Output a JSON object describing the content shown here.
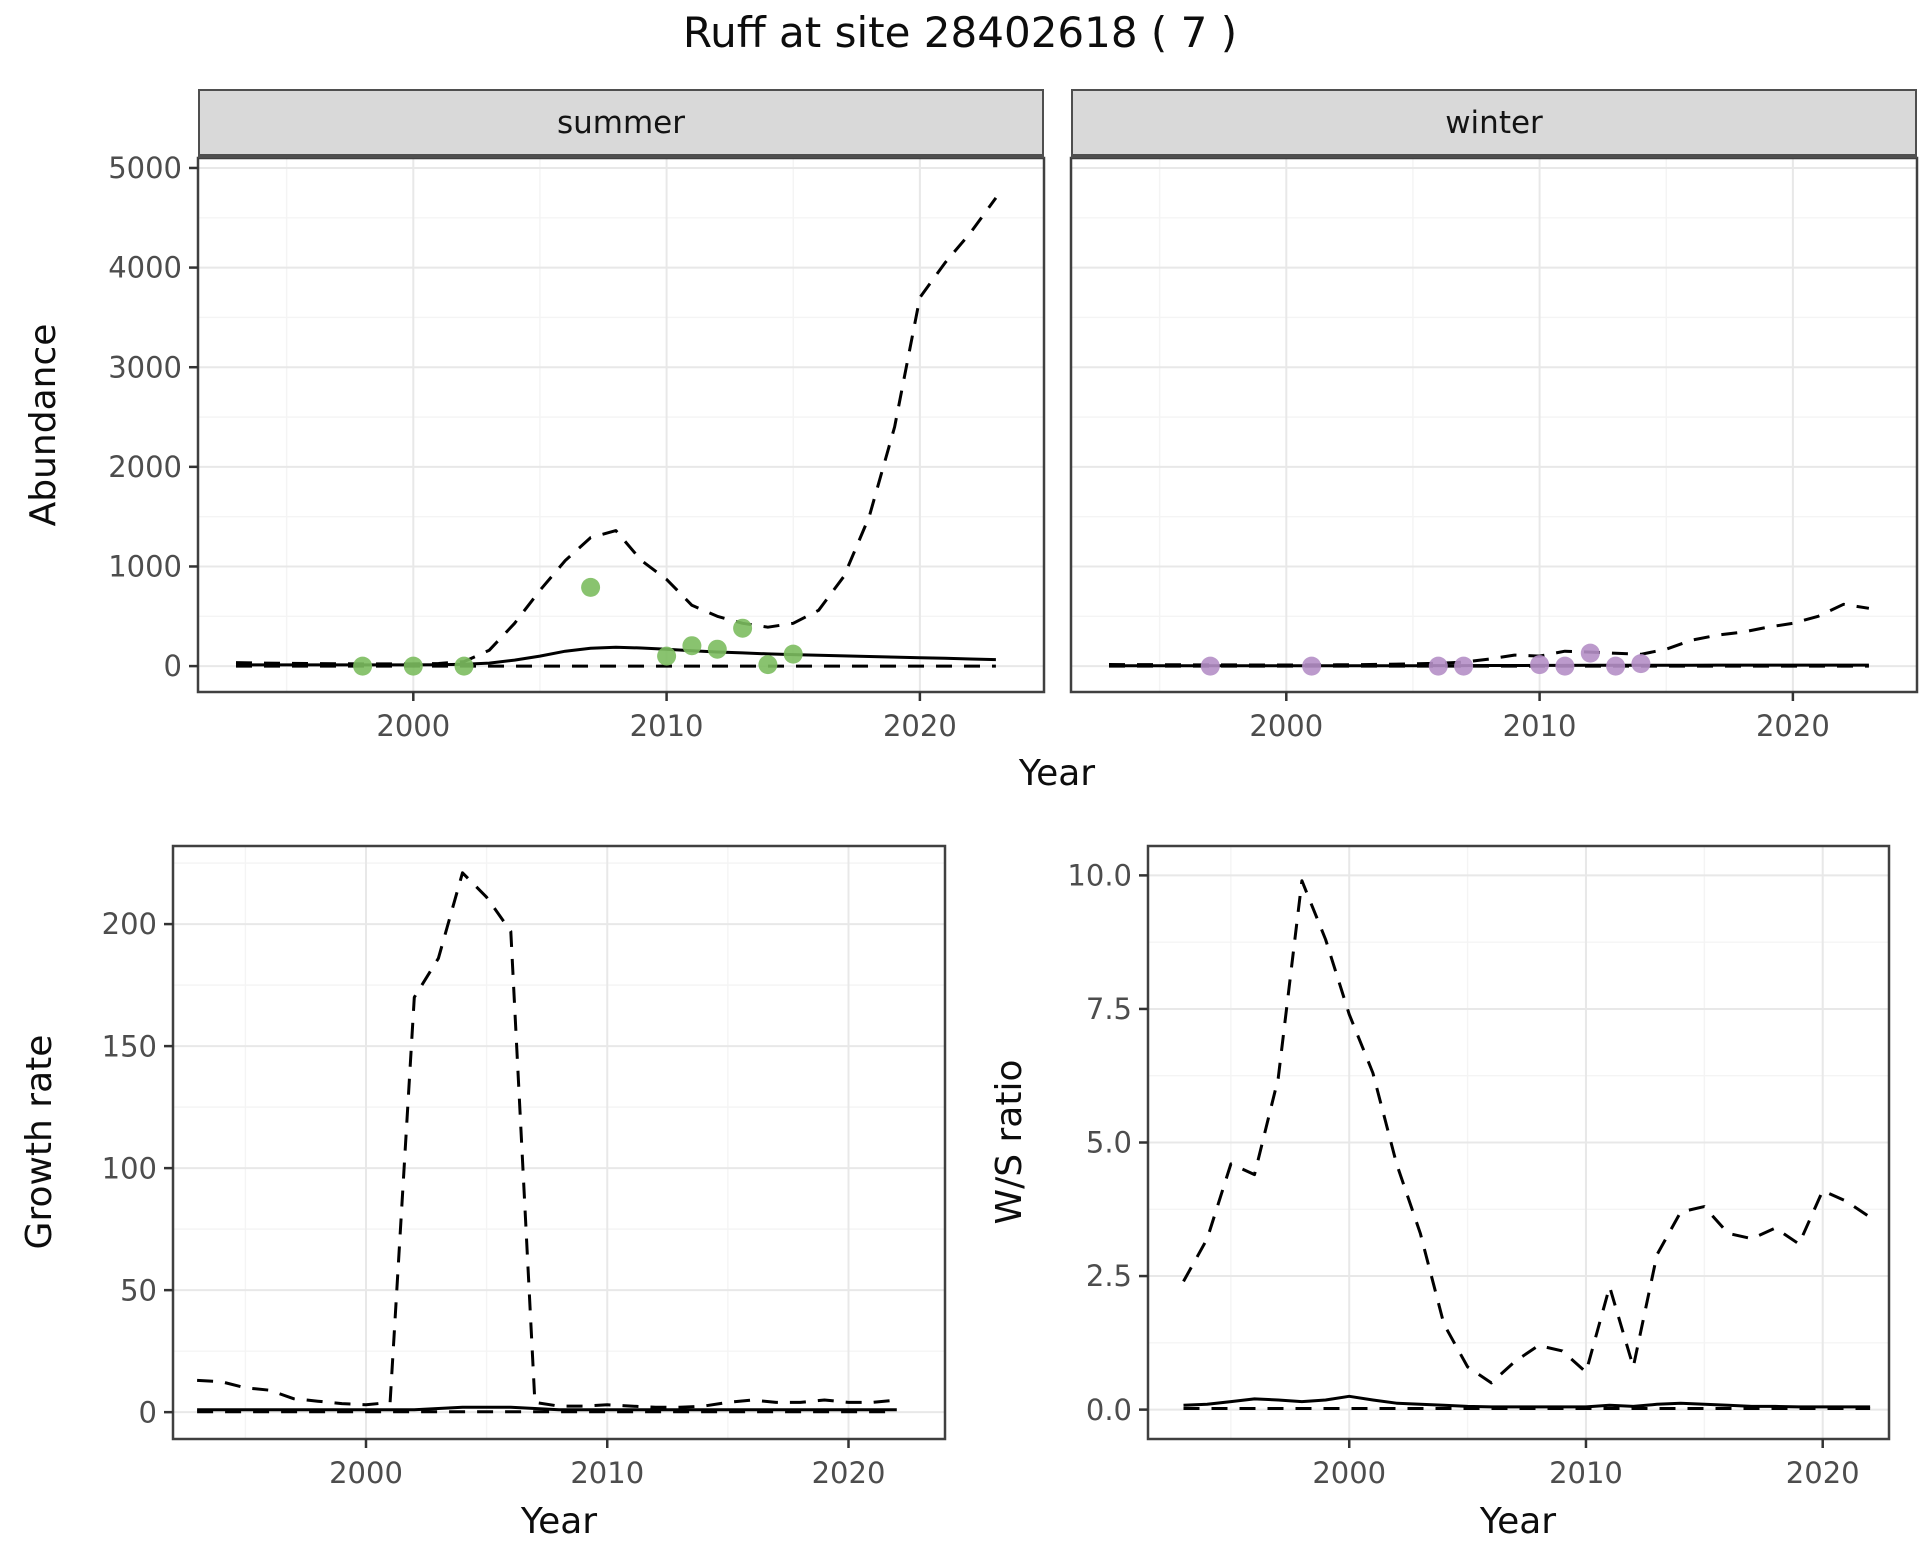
{
  "title": "Ruff at site 28402618 ( 7 )",
  "colors": {
    "summer_points": "#7cbd5f",
    "winter_points": "#b58fc6",
    "line": "#000000",
    "strip_bg": "#d9d9d9",
    "grid_major": "#e8e8e8",
    "grid_minor": "#f4f4f4",
    "panel_border": "#404040",
    "tick_text": "#4d4d4d"
  },
  "chart_data": [
    {
      "id": "abundance-summer",
      "type": "line",
      "facet": "summer",
      "xlabel": "Year",
      "ylabel": "Abundance",
      "xlim": [
        1991.5,
        2024.9
      ],
      "ylim": [
        -260,
        5100
      ],
      "xticks": [
        2000,
        2010,
        2020
      ],
      "xtick_labels": [
        "2000",
        "2010",
        "2020"
      ],
      "yticks": [
        0,
        1000,
        2000,
        3000,
        4000,
        5000
      ],
      "ytick_labels": [
        "0",
        "1000",
        "2000",
        "3000",
        "4000",
        "5000"
      ],
      "x": [
        1993,
        1994,
        1995,
        1996,
        1997,
        1998,
        1999,
        2000,
        2001,
        2002,
        2003,
        2004,
        2005,
        2006,
        2007,
        2008,
        2009,
        2010,
        2011,
        2012,
        2013,
        2014,
        2015,
        2016,
        2017,
        2018,
        2019,
        2020,
        2021,
        2022,
        2023
      ],
      "series": [
        {
          "name": "median",
          "style": "solid",
          "values": [
            12,
            12,
            12,
            12,
            12,
            12,
            12,
            12,
            14,
            18,
            30,
            60,
            100,
            150,
            180,
            190,
            182,
            170,
            155,
            142,
            132,
            122,
            115,
            108,
            102,
            96,
            90,
            84,
            78,
            71,
            65
          ]
        },
        {
          "name": "upper_ci",
          "style": "dashed",
          "values": [
            35,
            30,
            28,
            26,
            24,
            22,
            22,
            22,
            26,
            45,
            160,
            430,
            760,
            1060,
            1290,
            1360,
            1060,
            870,
            610,
            500,
            430,
            390,
            430,
            560,
            900,
            1500,
            2400,
            3700,
            4050,
            4350,
            4700
          ]
        },
        {
          "name": "lower_ci",
          "style": "dashed",
          "values": [
            0,
            0,
            0,
            0,
            0,
            0,
            0,
            0,
            0,
            0,
            0,
            0,
            0,
            0,
            0,
            0,
            0,
            0,
            0,
            0,
            0,
            0,
            0,
            0,
            0,
            0,
            0,
            0,
            0,
            0,
            0
          ]
        }
      ],
      "points": {
        "name": "summer-observations",
        "color": "#7cbd5f",
        "x": [
          1998,
          2000,
          2002,
          2007,
          2010,
          2011,
          2012,
          2013,
          2014,
          2015
        ],
        "y": [
          0,
          0,
          0,
          790,
          100,
          205,
          170,
          380,
          15,
          120
        ]
      }
    },
    {
      "id": "abundance-winter",
      "type": "line",
      "facet": "winter",
      "xlabel": "Year",
      "ylabel": "Abundance",
      "xlim": [
        1991.5,
        2024.9
      ],
      "ylim": [
        -260,
        5100
      ],
      "xticks": [
        2000,
        2010,
        2020
      ],
      "xtick_labels": [
        "2000",
        "2010",
        "2020"
      ],
      "yticks": [
        0,
        1000,
        2000,
        3000,
        4000,
        5000
      ],
      "ytick_labels": [
        "0",
        "1000",
        "2000",
        "3000",
        "4000",
        "5000"
      ],
      "x": [
        1993,
        1994,
        1995,
        1996,
        1997,
        1998,
        1999,
        2000,
        2001,
        2002,
        2003,
        2004,
        2005,
        2006,
        2007,
        2008,
        2009,
        2010,
        2011,
        2012,
        2013,
        2014,
        2015,
        2016,
        2017,
        2018,
        2019,
        2020,
        2021,
        2022,
        2023
      ],
      "series": [
        {
          "name": "median",
          "style": "solid",
          "values": [
            4,
            4,
            4,
            4,
            4,
            4,
            4,
            4,
            4,
            4,
            4,
            4,
            4,
            5,
            5,
            6,
            6,
            7,
            7,
            8,
            8,
            9,
            9,
            9,
            10,
            10,
            10,
            10,
            10,
            10,
            10
          ]
        },
        {
          "name": "upper_ci",
          "style": "dashed",
          "values": [
            16,
            15,
            14,
            13,
            12,
            12,
            11,
            11,
            12,
            13,
            15,
            18,
            22,
            28,
            40,
            70,
            110,
            100,
            150,
            140,
            128,
            118,
            170,
            260,
            310,
            340,
            390,
            430,
            500,
            620,
            580
          ]
        },
        {
          "name": "lower_ci",
          "style": "dashed",
          "values": [
            0,
            0,
            0,
            0,
            0,
            0,
            0,
            0,
            0,
            0,
            0,
            0,
            0,
            0,
            0,
            0,
            0,
            0,
            0,
            0,
            0,
            0,
            0,
            0,
            0,
            0,
            0,
            0,
            0,
            0,
            0
          ]
        }
      ],
      "points": {
        "name": "winter-observations",
        "color": "#b58fc6",
        "x": [
          1997,
          2001,
          2006,
          2007,
          2010,
          2011,
          2012,
          2013,
          2014
        ],
        "y": [
          0,
          0,
          0,
          0,
          15,
          0,
          130,
          0,
          25
        ]
      }
    },
    {
      "id": "growth-rate",
      "type": "line",
      "facet": null,
      "xlabel": "Year",
      "ylabel": "Growth rate",
      "xlim": [
        1992,
        2024
      ],
      "ylim": [
        -11,
        232
      ],
      "xticks": [
        2000,
        2010,
        2020
      ],
      "xtick_labels": [
        "2000",
        "2010",
        "2020"
      ],
      "yticks": [
        0,
        50,
        100,
        150,
        200
      ],
      "ytick_labels": [
        "0",
        "50",
        "100",
        "150",
        "200"
      ],
      "x": [
        1993,
        1994,
        1995,
        1996,
        1997,
        1998,
        1999,
        2000,
        2001,
        2002,
        2003,
        2004,
        2005,
        2006,
        2007,
        2008,
        2009,
        2010,
        2011,
        2012,
        2013,
        2014,
        2015,
        2016,
        2017,
        2018,
        2019,
        2020,
        2021,
        2022
      ],
      "series": [
        {
          "name": "median",
          "style": "solid",
          "values": [
            1,
            1,
            1,
            1,
            1,
            1,
            1,
            1,
            1,
            1,
            1.5,
            2,
            2,
            2,
            1.5,
            1,
            1,
            1,
            1,
            1,
            1,
            1,
            1,
            1,
            1,
            1,
            1,
            1,
            1,
            1
          ]
        },
        {
          "name": "upper_ci",
          "style": "dashed",
          "values": [
            13,
            12.5,
            10,
            9,
            5.5,
            4.5,
            3.5,
            3,
            4,
            170,
            186,
            221,
            211,
            197,
            4,
            2.5,
            2.5,
            3,
            2.5,
            2,
            2,
            2.5,
            4,
            5,
            4,
            4,
            5,
            4,
            4,
            5
          ]
        },
        {
          "name": "lower_ci",
          "style": "dashed",
          "values": [
            0.2,
            0.2,
            0.2,
            0.2,
            0.2,
            0.2,
            0.2,
            0.2,
            0.2,
            0.2,
            0.2,
            0.2,
            0.2,
            0.2,
            0.2,
            0.2,
            0.2,
            0.2,
            0.2,
            0.2,
            0.2,
            0.2,
            0.2,
            0.2,
            0.2,
            0.2,
            0.2,
            0.2,
            0.2,
            0.2
          ]
        }
      ],
      "points": null
    },
    {
      "id": "ws-ratio",
      "type": "line",
      "facet": null,
      "xlabel": "Year",
      "ylabel": "W/S ratio",
      "xlim": [
        1991.5,
        2022.8
      ],
      "ylim": [
        -0.55,
        10.55
      ],
      "xticks": [
        2000,
        2010,
        2020
      ],
      "xtick_labels": [
        "2000",
        "2010",
        "2020"
      ],
      "yticks": [
        0,
        2.5,
        5,
        7.5,
        10
      ],
      "ytick_labels": [
        "0.0",
        "2.5",
        "5.0",
        "7.5",
        "10.0"
      ],
      "x": [
        1993,
        1994,
        1995,
        1996,
        1997,
        1998,
        1999,
        2000,
        2001,
        2002,
        2003,
        2004,
        2005,
        2006,
        2007,
        2008,
        2009,
        2010,
        2011,
        2012,
        2013,
        2014,
        2015,
        2016,
        2017,
        2018,
        2019,
        2020,
        2021,
        2022
      ],
      "series": [
        {
          "name": "median",
          "style": "solid",
          "values": [
            0.08,
            0.1,
            0.15,
            0.2,
            0.18,
            0.15,
            0.18,
            0.25,
            0.18,
            0.12,
            0.1,
            0.08,
            0.06,
            0.05,
            0.05,
            0.05,
            0.05,
            0.05,
            0.08,
            0.06,
            0.1,
            0.12,
            0.1,
            0.08,
            0.06,
            0.06,
            0.05,
            0.05,
            0.05,
            0.05
          ]
        },
        {
          "name": "upper_ci",
          "style": "dashed",
          "values": [
            2.4,
            3.2,
            4.6,
            4.4,
            6.2,
            9.9,
            8.8,
            7.4,
            6.3,
            4.6,
            3.3,
            1.6,
            0.8,
            0.5,
            0.9,
            1.2,
            1.1,
            0.7,
            2.3,
            0.8,
            2.9,
            3.7,
            3.8,
            3.3,
            3.2,
            3.4,
            3.1,
            4.1,
            3.9,
            3.6
          ]
        },
        {
          "name": "lower_ci",
          "style": "dashed",
          "values": [
            0.02,
            0.02,
            0.02,
            0.02,
            0.02,
            0.02,
            0.02,
            0.02,
            0.02,
            0.02,
            0.02,
            0.02,
            0.02,
            0.02,
            0.02,
            0.02,
            0.02,
            0.02,
            0.02,
            0.02,
            0.02,
            0.02,
            0.02,
            0.02,
            0.02,
            0.02,
            0.02,
            0.02,
            0.02,
            0.02
          ]
        }
      ],
      "points": null
    }
  ]
}
